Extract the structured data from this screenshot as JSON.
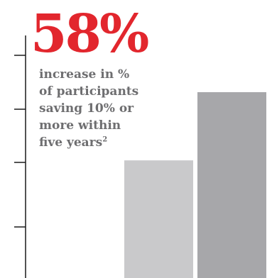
{
  "headline": {
    "value": "58%",
    "caption_lines": [
      "increase in %",
      "of participants",
      "saving 10% or",
      "more within",
      "five years"
    ],
    "footnote_marker": "2",
    "color": "#e2262d",
    "caption_color": "#6e6e70"
  },
  "chart_data": {
    "type": "bar",
    "title": "",
    "xlabel": "",
    "ylabel": "",
    "categories": [
      "",
      ""
    ],
    "values": [
      1.0,
      1.58
    ],
    "ylim": [
      0,
      2.05
    ],
    "bar_colors": [
      "#c9c9cb",
      "#a7a7aa"
    ],
    "axis_color": "#1a1a1a",
    "grid": false,
    "tick_marks": 4
  }
}
